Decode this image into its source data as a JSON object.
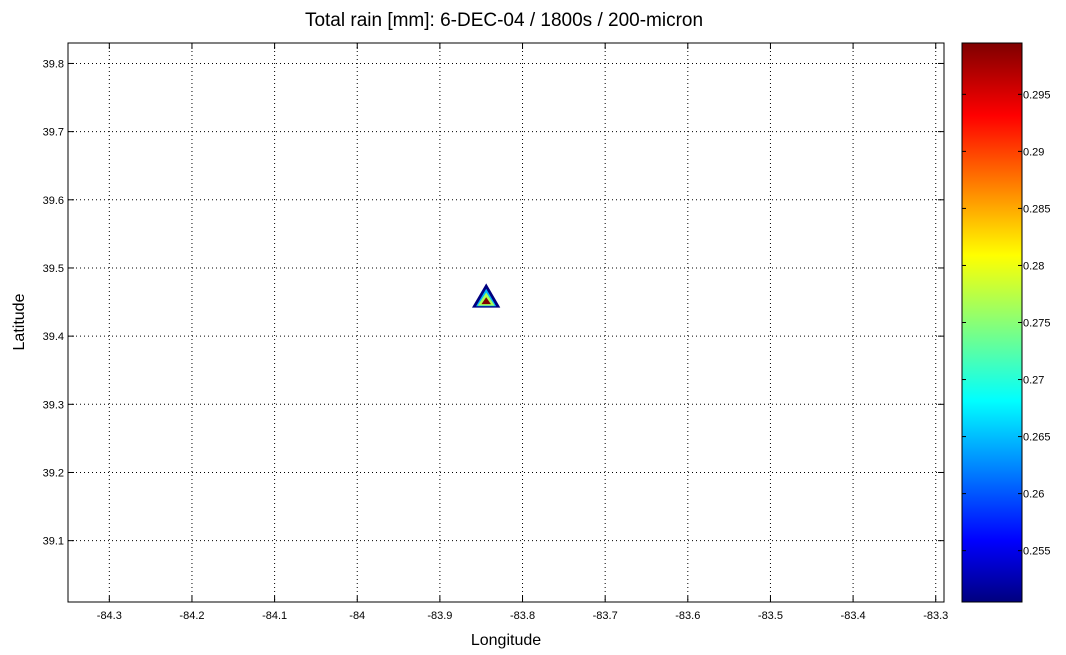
{
  "chart_data": {
    "type": "heatmap",
    "title": "Total rain [mm]: 6-DEC-04 / 1800s / 200-micron",
    "xlabel": "Longitude",
    "ylabel": "Latitude",
    "xlim": [
      -84.35,
      -83.29
    ],
    "ylim": [
      39.01,
      39.83
    ],
    "xticks": [
      -84.3,
      -84.2,
      -84.1,
      -84.0,
      -83.9,
      -83.8,
      -83.7,
      -83.6,
      -83.5,
      -83.4,
      -83.3
    ],
    "xtick_labels": [
      "-84.3",
      "-84.2",
      "-84.1",
      "-84",
      "-83.9",
      "-83.8",
      "-83.7",
      "-83.6",
      "-83.5",
      "-83.4",
      "-83.3"
    ],
    "yticks": [
      39.1,
      39.2,
      39.3,
      39.4,
      39.5,
      39.6,
      39.7,
      39.8
    ],
    "ytick_labels": [
      "39.1",
      "39.2",
      "39.3",
      "39.4",
      "39.5",
      "39.6",
      "39.7",
      "39.8"
    ],
    "grid": true,
    "grid_style": "dotted",
    "contours": [
      {
        "level": 0.25,
        "color": "#00007f",
        "points": [
          [
            -83.844,
            39.473
          ],
          [
            -83.858,
            39.444
          ],
          [
            -83.83,
            39.444
          ]
        ]
      },
      {
        "level": 0.265,
        "color": "#00b4ff",
        "points": [
          [
            -83.844,
            39.465
          ],
          [
            -83.853,
            39.446
          ],
          [
            -83.835,
            39.446
          ]
        ]
      },
      {
        "level": 0.28,
        "color": "#aaff55",
        "points": [
          [
            -83.844,
            39.46
          ],
          [
            -83.851,
            39.447
          ],
          [
            -83.837,
            39.447
          ]
        ]
      },
      {
        "level": 0.295,
        "color": "#7f0000",
        "points": [
          [
            -83.844,
            39.455
          ],
          [
            -83.848,
            39.448
          ],
          [
            -83.84,
            39.448
          ]
        ]
      }
    ],
    "colorbar": {
      "colormap": "jet",
      "range": [
        0.2505,
        0.2995
      ],
      "ticks": [
        0.255,
        0.26,
        0.265,
        0.27,
        0.275,
        0.28,
        0.285,
        0.29,
        0.295
      ],
      "tick_labels": [
        "0.255",
        "0.26",
        "0.265",
        "0.27",
        "0.275",
        "0.28",
        "0.285",
        "0.29",
        "0.295"
      ]
    }
  }
}
